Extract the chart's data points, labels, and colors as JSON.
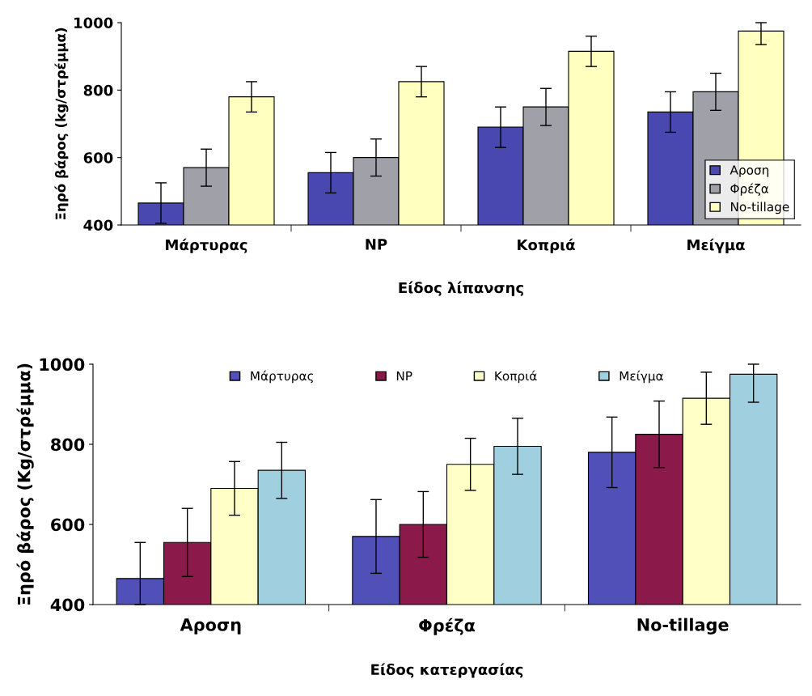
{
  "chart_data": [
    {
      "type": "bar",
      "ylabel": "Ξηρό βάρος (kg/στρέμμα)",
      "xlabel": "Είδος λίπανσης",
      "categories": [
        "Μάρτυρας",
        "NP",
        "Κοπριά",
        "Μείγμα"
      ],
      "ylim": [
        400,
        1000
      ],
      "yticks": [
        400,
        600,
        800,
        1000
      ],
      "grid": false,
      "legend": "bottom right",
      "series": [
        {
          "name": "Αροση",
          "color": "#4848b0",
          "values": [
            465,
            555,
            690,
            735
          ],
          "errors": [
            60,
            60,
            60,
            60
          ]
        },
        {
          "name": "Φρέζα",
          "color": "#a0a0a8",
          "values": [
            570,
            600,
            750,
            795
          ],
          "errors": [
            55,
            55,
            55,
            55
          ]
        },
        {
          "name": "No-tillage",
          "color": "#ffffc0",
          "values": [
            780,
            825,
            915,
            975
          ],
          "errors": [
            45,
            45,
            45,
            [
              935,
              1000
            ]
          ]
        }
      ]
    },
    {
      "type": "bar",
      "ylabel": "Ξηρό βάρος (Kg/στρέμμα)",
      "xlabel": "Είδος κατεργασίας",
      "categories": [
        "Αροση",
        "Φρέζα",
        "No-tillage"
      ],
      "ylim": [
        400,
        1000
      ],
      "yticks": [
        400,
        600,
        800,
        1000
      ],
      "grid": false,
      "legend": "top",
      "series": [
        {
          "name": "Μάρτυρας",
          "color": "#5050b8",
          "values": [
            465,
            570,
            780
          ],
          "errors": [
            [
              400,
              555
            ],
            92,
            88
          ]
        },
        {
          "name": "NP",
          "color": "#8b1a4a",
          "values": [
            555,
            600,
            825
          ],
          "errors": [
            85,
            82,
            83
          ]
        },
        {
          "name": "Κοπριά",
          "color": "#ffffc8",
          "values": [
            690,
            750,
            915
          ],
          "errors": [
            67,
            65,
            65
          ]
        },
        {
          "name": "Μείγμα",
          "color": "#a0d0e0",
          "values": [
            735,
            795,
            975
          ],
          "errors": [
            70,
            70,
            [
              905,
              1000
            ]
          ]
        }
      ]
    }
  ]
}
